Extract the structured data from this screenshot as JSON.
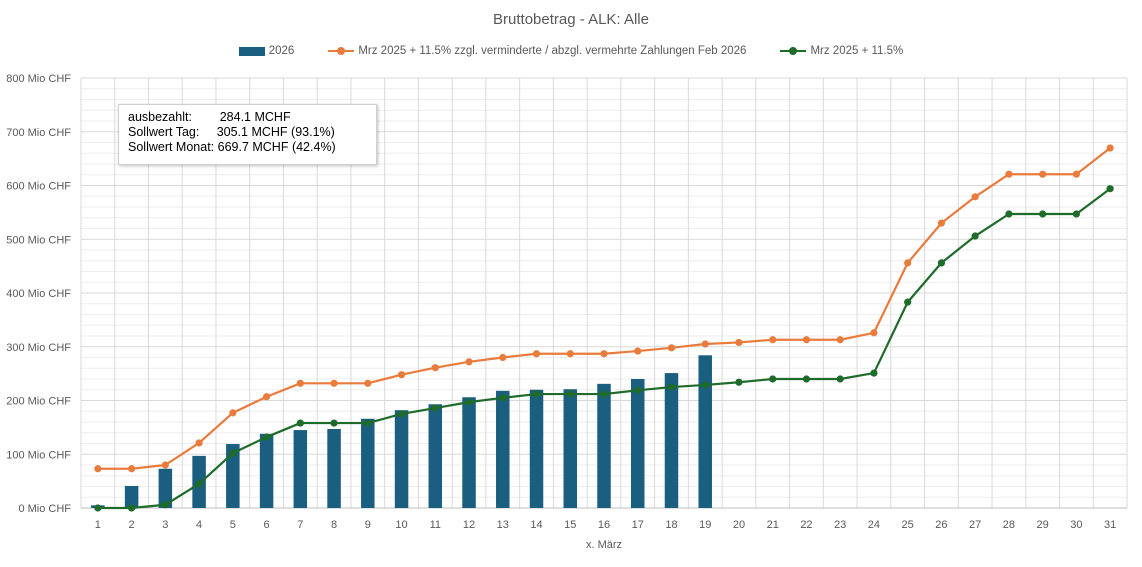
{
  "chart_data": {
    "type": "bar+line",
    "title": "Bruttobetrag - ALK: Alle",
    "xlabel": "x. März",
    "ylabel": "",
    "ylim": [
      0,
      800
    ],
    "yticks": [
      0,
      100,
      200,
      300,
      400,
      500,
      600,
      700,
      800
    ],
    "ytick_suffix": " Mio CHF",
    "grid": true,
    "legend_position": "top",
    "categories": [
      "1",
      "2",
      "3",
      "4",
      "5",
      "6",
      "7",
      "8",
      "9",
      "10",
      "11",
      "12",
      "13",
      "14",
      "15",
      "16",
      "17",
      "18",
      "19",
      "20",
      "21",
      "22",
      "23",
      "24",
      "25",
      "26",
      "27",
      "28",
      "29",
      "30",
      "31"
    ],
    "series": [
      {
        "name": "2026",
        "type": "bar",
        "color": "#1a5e80",
        "values": [
          5,
          41,
          73,
          97,
          119,
          138,
          145,
          147,
          166,
          182,
          193,
          206,
          218,
          220,
          221,
          231,
          240,
          251,
          284.1,
          null,
          null,
          null,
          null,
          null,
          null,
          null,
          null,
          null,
          null,
          null,
          null
        ]
      },
      {
        "name": "Mrz 2025 + 11.5% zzgl. verminderte / abzgl. vermehrte Zahlungen Feb 2026",
        "type": "line",
        "color": "#e97b3c",
        "values": [
          73,
          73,
          80,
          121,
          177,
          207,
          232,
          232,
          232,
          248,
          261,
          272,
          280,
          287,
          287,
          287,
          292,
          298,
          305.1,
          308,
          313,
          313,
          313,
          326,
          456,
          530,
          579,
          621,
          621,
          621,
          669.7
        ]
      },
      {
        "name": "Mrz 2025 + 11.5%",
        "type": "line",
        "color": "#1e6b2a",
        "values": [
          0,
          0,
          6,
          45,
          102,
          132,
          158,
          158,
          158,
          175,
          186,
          197,
          205,
          212,
          212,
          212,
          219,
          225,
          229,
          234,
          240,
          240,
          240,
          251,
          383,
          456,
          506,
          547,
          547,
          547,
          594
        ]
      }
    ],
    "annotation": {
      "lines": [
        "ausbezahlt:        284.1 MCHF",
        "Sollwert Tag:     305.1 MCHF (93.1%)",
        "Sollwert Monat: 669.7 MCHF (42.4%)"
      ]
    }
  }
}
